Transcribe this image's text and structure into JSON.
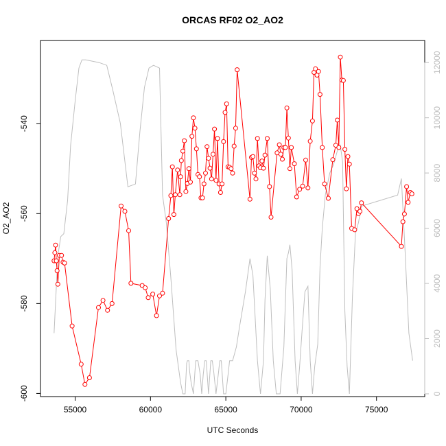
{
  "chart_data": {
    "type": "line",
    "title": "ORCAS RF02 O2_AO2",
    "xlabel": "UTC Seconds",
    "ylabel": "O2_AO2",
    "xlim": [
      52700,
      78200
    ],
    "ylim": [
      -600.7,
      -521.5
    ],
    "y2lim": [
      -100,
      12800
    ],
    "x_ticks": [
      55000,
      60000,
      65000,
      70000,
      75000
    ],
    "x_tick_labels": [
      "55000",
      "60000",
      "65000",
      "70000",
      "75000"
    ],
    "y_ticks": [
      -600,
      -580,
      -560,
      -540
    ],
    "y_tick_labels": [
      "-600",
      "-580",
      "-560",
      "-540"
    ],
    "y2_ticks": [
      0,
      2000,
      4000,
      6000,
      8000,
      10000,
      12000
    ],
    "y2_tick_labels": [
      "0",
      "2000",
      "4000",
      "6000",
      "8000",
      "10000",
      "12000"
    ],
    "colors": {
      "primary": "#ff0000",
      "secondary": "#bebebe",
      "axis": "#000000",
      "right_axis": "#bdbdbd"
    },
    "series": [
      {
        "axis": "left",
        "x": [
          53600,
          53650,
          53700,
          53750,
          53800,
          53850,
          53950,
          54100,
          54200,
          54300,
          54800,
          55400,
          55650,
          55950,
          56550,
          56850,
          57150,
          57450,
          58050,
          58300,
          58550,
          58700,
          59450,
          59650,
          59850,
          60150,
          60400,
          60600,
          60800,
          61200,
          61350,
          61450,
          61550,
          61650,
          61800,
          61950,
          62000,
          62050,
          62150,
          62250,
          62350,
          62450,
          62550,
          62650,
          62750,
          62850,
          62950,
          63050,
          63150,
          63250,
          63350,
          63450,
          63550,
          63650,
          63750,
          63850,
          63950,
          64050,
          64150,
          64250,
          64350,
          64450,
          64550,
          64650,
          64750,
          64850,
          64950,
          65050,
          65150,
          65250,
          65350,
          65450,
          65550,
          65650,
          65750,
          66600,
          66700,
          66800,
          66900,
          67000,
          67100,
          67200,
          67300,
          67400,
          67500,
          67600,
          67750,
          67900,
          68000,
          68400,
          68550,
          68650,
          68750,
          68850,
          68950,
          69050,
          69150,
          69250,
          69350,
          69550,
          69700,
          69900,
          70100,
          70300,
          70450,
          70600,
          70750,
          70850,
          70950,
          71050,
          71150,
          71250,
          71400,
          71550,
          71800,
          72100,
          72300,
          72400,
          72500,
          72600,
          72700,
          72800,
          72900,
          73000,
          73100,
          73200,
          73350,
          73550,
          73700,
          73800,
          73900,
          74000,
          76650,
          76750,
          76850,
          77000,
          77100,
          77250,
          77350
        ],
        "y": [
          -570.5,
          -568.7,
          -567,
          -570.5,
          -572.7,
          -575.7,
          -569.3,
          -569.3,
          -570.8,
          -571,
          -585,
          -593.5,
          -598,
          -596.5,
          -580.9,
          -579.3,
          -581.5,
          -580,
          -558.3,
          -559.5,
          -563.8,
          -575.5,
          -576,
          -576.5,
          -578.7,
          -577.9,
          -582.7,
          -578.3,
          -577.7,
          -561.1,
          -556,
          -549.6,
          -560.2,
          -555.8,
          -550.3,
          -555.8,
          -551.8,
          -548.2,
          -546.1,
          -543.8,
          -555.1,
          -553.3,
          -550,
          -553,
          -542.8,
          -538.7,
          -541,
          -545.6,
          -551.3,
          -551.8,
          -556.5,
          -556.5,
          -553.4,
          -551,
          -545.1,
          -547.7,
          -549.9,
          -552.3,
          -546.8,
          -541.2,
          -552.6,
          -543.3,
          -553.4,
          -555.3,
          -553.4,
          -544,
          -537.5,
          -535.6,
          -549.6,
          -549.7,
          -550,
          -551,
          -545,
          -541,
          -528,
          -556.8,
          -547.5,
          -547.3,
          -551,
          -552.3,
          -543.3,
          -549.4,
          -549.8,
          -548.3,
          -549.9,
          -547,
          -543.3,
          -554,
          -560.8,
          -546.5,
          -544.7,
          -546.8,
          -547.9,
          -545.3,
          -545.3,
          -536.5,
          -543.2,
          -550,
          -545.3,
          -548.9,
          -556.3,
          -554.6,
          -553.9,
          -548.1,
          -554.3,
          -543.9,
          -539.4,
          -528.6,
          -527.8,
          -529.2,
          -528.4,
          -533.5,
          -545.3,
          -553.4,
          -556.6,
          -548,
          -544.8,
          -539.2,
          -545.3,
          -525.2,
          -530.3,
          -530.4,
          -545.7,
          -554.5,
          -547.3,
          -549,
          -563.3,
          -563.6,
          -558.9,
          -560,
          -559.5,
          -557.6,
          -567.3,
          -561.8,
          -560.1,
          -554,
          -557.5,
          -555.3,
          -555.6
        ]
      },
      {
        "axis": "right",
        "x": [
          53600,
          53850,
          54050,
          54250,
          54500,
          54700,
          55000,
          55250,
          55450,
          55700,
          56600,
          57100,
          57500,
          58000,
          58500,
          59000,
          59300,
          59600,
          59900,
          60200,
          60600,
          60800,
          61050,
          61350,
          61700,
          62000,
          62150,
          62300,
          62400,
          62450,
          62550,
          62600,
          62700,
          62850,
          63000,
          63150,
          63300,
          63400,
          63500,
          63600,
          63700,
          63850,
          64000,
          64100,
          64200,
          64350,
          64500,
          64600,
          64700,
          64850,
          65000,
          65150,
          65250,
          65350,
          65450,
          65550,
          65700,
          65900,
          66300,
          66600,
          66800,
          67100,
          67300,
          67500,
          67600,
          67750,
          67950,
          68150,
          68350,
          68600,
          68850,
          69050,
          69150,
          69250,
          69400,
          69600,
          69750,
          69900,
          70050,
          70250,
          70450,
          70600,
          70750,
          70900,
          71100,
          71250,
          71400,
          71600,
          71900,
          72150,
          72400,
          72600,
          72750,
          72900,
          73050,
          73200,
          73400,
          73600,
          73800,
          73900,
          74000,
          76400,
          76650,
          76900,
          77150,
          77400
        ],
        "y": [
          2200,
          5000,
          5700,
          5800,
          7000,
          9000,
          10600,
          11800,
          12100,
          12100,
          12000,
          11900,
          11000,
          9800,
          7500,
          7600,
          9500,
          11100,
          11800,
          11900,
          11800,
          7200,
          6200,
          4200,
          1600,
          400,
          0,
          0,
          1100,
          1200,
          1200,
          800,
          400,
          0,
          1200,
          1200,
          700,
          0,
          700,
          1200,
          1200,
          0,
          1200,
          1200,
          800,
          0,
          700,
          1200,
          1200,
          0,
          0,
          700,
          1200,
          1200,
          1200,
          1400,
          1700,
          2400,
          3700,
          4900,
          4300,
          1200,
          0,
          1200,
          3400,
          5000,
          3800,
          1200,
          0,
          0,
          1700,
          4900,
          5100,
          5400,
          4500,
          1200,
          0,
          1000,
          2200,
          3700,
          3900,
          1200,
          0,
          1000,
          1800,
          4600,
          6000,
          7200,
          8000,
          8300,
          8800,
          9000,
          8400,
          3000,
          1000,
          0,
          3500,
          5800,
          6200,
          6500,
          6800,
          7200,
          7800,
          5100,
          2200,
          1200
        ]
      }
    ]
  }
}
